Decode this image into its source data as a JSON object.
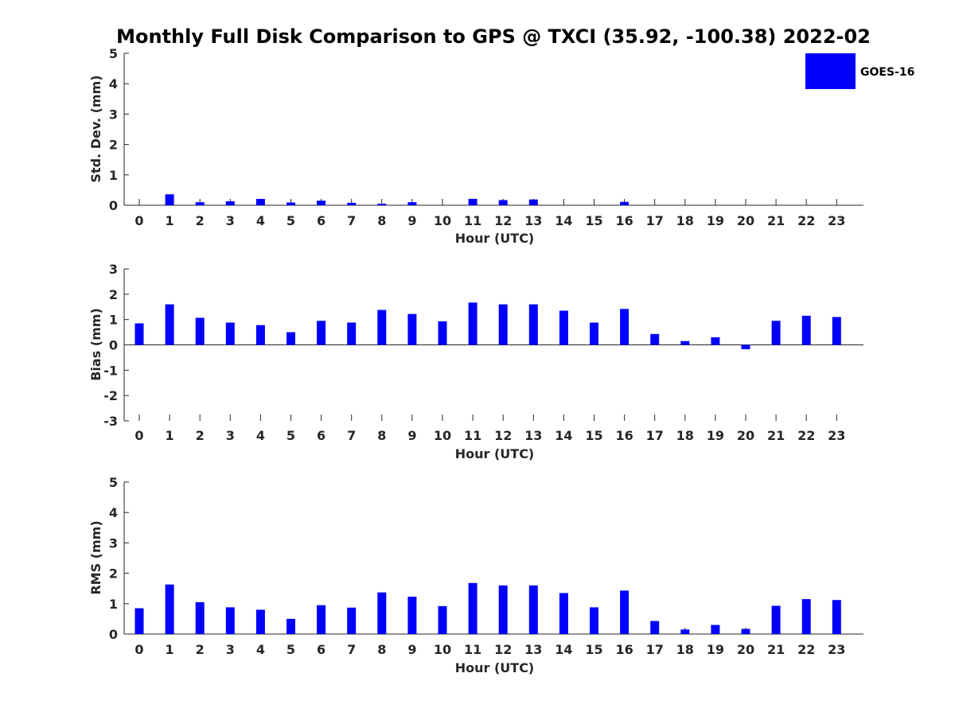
{
  "title": "Monthly Full Disk Comparison to GPS @ TXCI (35.92, -100.38) 2022-02",
  "legend": {
    "label": "GOES-16",
    "color": "#0000ff",
    "placement": "top-right"
  },
  "chart_data": [
    {
      "type": "bar",
      "ylabel": "Std. Dev. (mm)",
      "xlabel": "Hour (UTC)",
      "ylim": [
        0,
        5
      ],
      "yticks": [
        0,
        1,
        2,
        3,
        4,
        5
      ],
      "categories": [
        "0",
        "1",
        "2",
        "3",
        "4",
        "5",
        "6",
        "7",
        "8",
        "9",
        "10",
        "11",
        "12",
        "13",
        "14",
        "15",
        "16",
        "17",
        "18",
        "19",
        "20",
        "21",
        "22",
        "23"
      ],
      "series": [
        {
          "values": [
            null,
            0.36,
            0.1,
            0.13,
            0.21,
            0.09,
            0.15,
            0.08,
            0.05,
            0.1,
            null,
            0.21,
            0.17,
            0.19,
            null,
            null,
            0.11,
            null,
            null,
            null,
            null,
            null,
            null,
            null
          ]
        }
      ]
    },
    {
      "type": "bar",
      "ylabel": "Bias (mm)",
      "xlabel": "Hour (UTC)",
      "ylim": [
        -3,
        3
      ],
      "yticks": [
        -3,
        -2,
        -1,
        0,
        1,
        2,
        3
      ],
      "categories": [
        "0",
        "1",
        "2",
        "3",
        "4",
        "5",
        "6",
        "7",
        "8",
        "9",
        "10",
        "11",
        "12",
        "13",
        "14",
        "15",
        "16",
        "17",
        "18",
        "19",
        "20",
        "21",
        "22",
        "23"
      ],
      "series": [
        {
          "values": [
            0.85,
            1.6,
            1.07,
            0.88,
            0.78,
            0.5,
            0.95,
            0.88,
            1.38,
            1.22,
            0.93,
            1.67,
            1.6,
            1.6,
            1.35,
            0.88,
            1.42,
            0.43,
            0.15,
            0.3,
            -0.17,
            0.95,
            1.15,
            1.1
          ]
        }
      ]
    },
    {
      "type": "bar",
      "ylabel": "RMS (mm)",
      "xlabel": "Hour (UTC)",
      "ylim": [
        0,
        5
      ],
      "yticks": [
        0,
        1,
        2,
        3,
        4,
        5
      ],
      "categories": [
        "0",
        "1",
        "2",
        "3",
        "4",
        "5",
        "6",
        "7",
        "8",
        "9",
        "10",
        "11",
        "12",
        "13",
        "14",
        "15",
        "16",
        "17",
        "18",
        "19",
        "20",
        "21",
        "22",
        "23"
      ],
      "series": [
        {
          "values": [
            0.85,
            1.63,
            1.05,
            0.88,
            0.8,
            0.5,
            0.95,
            0.87,
            1.37,
            1.23,
            0.92,
            1.68,
            1.6,
            1.6,
            1.35,
            0.88,
            1.43,
            0.43,
            0.15,
            0.3,
            0.17,
            0.93,
            1.15,
            1.12
          ]
        }
      ]
    }
  ]
}
